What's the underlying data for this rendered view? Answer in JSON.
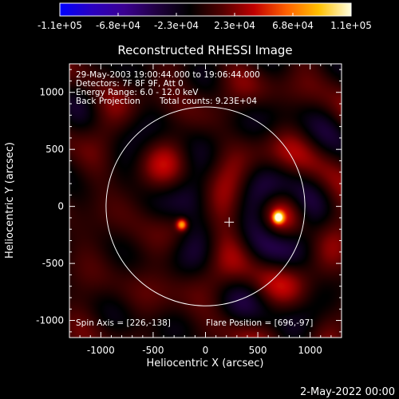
{
  "colorbar": {
    "labels": [
      "-1.1e+05",
      "-6.8e+04",
      "-2.3e+04",
      "2.3e+04",
      "6.8e+04",
      "1.1e+05"
    ],
    "min": -110000,
    "max": 110000,
    "colormap": [
      "#0000ff",
      "#2a00c0",
      "#3a0090",
      "#200040",
      "#000000",
      "#500000",
      "#c00000",
      "#ff6000",
      "#ffc000",
      "#ffffe0"
    ]
  },
  "info": {
    "time_range": "29-May-2003 19:00:44.000 to 19:06:44.000",
    "detectors": "Detectors: 7F 8F 9F, Att 0",
    "energy": "Energy Range: 6.0 - 12.0 keV",
    "method": "Back Projection",
    "counts": "Total counts: 9.23E+04",
    "spin_axis": "Spin Axis = [226,-138]",
    "flare_position": "Flare Position = [696,-97]"
  },
  "footer": {
    "date": "2-May-2022 00:00"
  },
  "chart_data": {
    "type": "heatmap",
    "title": "Reconstructed RHESSI Image",
    "xlabel": "Heliocentric X (arcsec)",
    "ylabel": "Heliocentric Y (arcsec)",
    "xlim": [
      -1300,
      1300
    ],
    "ylim": [
      -1150,
      1250
    ],
    "x_ticks": [
      -1000,
      -500,
      0,
      500,
      1000
    ],
    "y_ticks": [
      -1000,
      -500,
      0,
      500,
      1000
    ],
    "x_tick_labels": [
      "-1000",
      "-500",
      "0",
      "500",
      "1000"
    ],
    "y_tick_labels": [
      "-1000",
      "-500",
      "0",
      "500",
      "1000"
    ],
    "solar_limb": {
      "center": [
        0,
        0
      ],
      "radius_arcsec": 950
    },
    "sources": [
      {
        "x": 696,
        "y": -97,
        "peak": 110000
      },
      {
        "x": -225,
        "y": -160,
        "peak": 85000
      }
    ],
    "spin_axis_marker": [
      226,
      -138
    ]
  }
}
